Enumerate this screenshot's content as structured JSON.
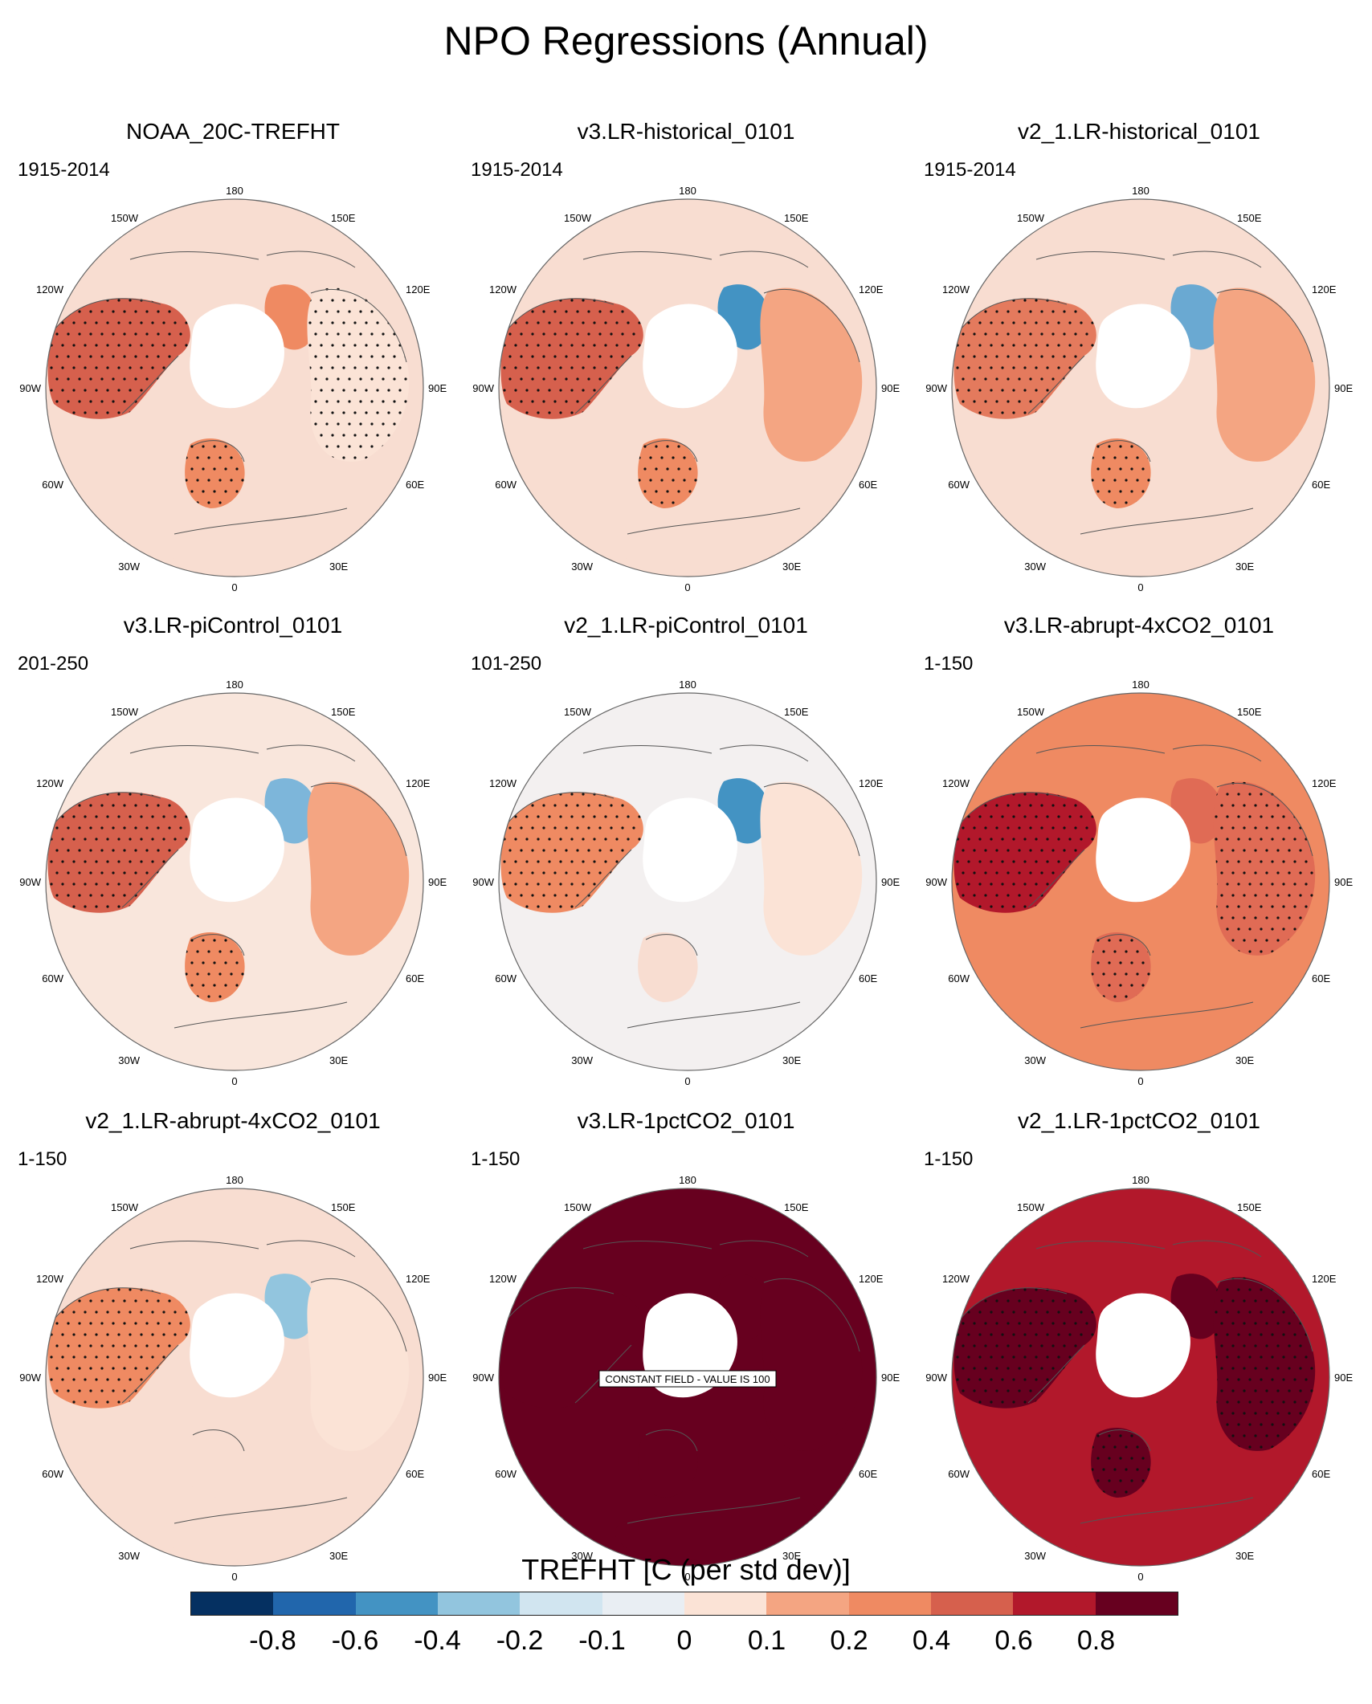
{
  "title": "NPO Regressions (Annual)",
  "colors": {
    "ocean_weak_pos": "#f8ddd1",
    "ocean_weak_neg": "#e3ecf3",
    "land_neutral": "#ffffff"
  },
  "longitude_labels": {
    "top": "180",
    "bottom": "0",
    "left": "90W",
    "right": "90E",
    "upper_left": "150W",
    "upper_right": "150E",
    "mid_upper_left": "120W",
    "mid_upper_right": "120E",
    "mid_lower_left": "60W",
    "mid_lower_right": "60E",
    "lower_left": "30W",
    "lower_right": "30E"
  },
  "panels": [
    {
      "title": "NOAA_20C-TREFHT",
      "period": "1915-2014",
      "ocean": "#f8ddd1",
      "na": "#d6604d",
      "eu": "#ef8a62",
      "sib": "#ef8a62",
      "asia": "#fbe3d6",
      "stip_na": true,
      "stip_sib": true,
      "stip_eu": true
    },
    {
      "title": "v3.LR-historical_0101",
      "period": "1915-2014",
      "ocean": "#f8ddd1",
      "na": "#d6604d",
      "eu": "#ef8a62",
      "sib": "#4393c3",
      "asia": "#f4a582",
      "stip_na": true,
      "stip_sib": false,
      "stip_eu": true
    },
    {
      "title": "v2_1.LR-historical_0101",
      "period": "1915-2014",
      "ocean": "#f8ddd1",
      "na": "#e47a5d",
      "eu": "#ef8a62",
      "sib": "#6aa9d2",
      "asia": "#f4a582",
      "stip_na": true,
      "stip_sib": false,
      "stip_eu": true
    },
    {
      "title": "v3.LR-piControl_0101",
      "period": "201-250",
      "ocean": "#f9e6dc",
      "na": "#d6604d",
      "eu": "#ef8a62",
      "sib": "#7db6da",
      "asia": "#f4a582",
      "stip_na": true,
      "stip_sib": false,
      "stip_eu": true
    },
    {
      "title": "v2_1.LR-piControl_0101",
      "period": "101-250",
      "ocean": "#f3f0f0",
      "na": "#ef8a62",
      "eu": "#f8ddd1",
      "sib": "#4393c3",
      "asia": "#fbe3d6",
      "stip_na": true,
      "stip_sib": false,
      "stip_eu": false
    },
    {
      "title": "v3.LR-abrupt-4xCO2_0101",
      "period": "1-150",
      "ocean": "#ef8a62",
      "na": "#b2182b",
      "eu": "#e06b55",
      "sib": "#e06b55",
      "asia": "#e06b55",
      "stip_na": true,
      "stip_sib": true,
      "stip_eu": true
    },
    {
      "title": "v2_1.LR-abrupt-4xCO2_0101",
      "period": "1-150",
      "ocean": "#f8ddd1",
      "na": "#ef8a62",
      "eu": "#f8ddd1",
      "sib": "#92c5de",
      "asia": "#fbe3d6",
      "stip_na": true,
      "stip_sib": false,
      "stip_eu": false
    },
    {
      "title": "v3.LR-1pctCO2_0101",
      "period": "1-150",
      "ocean": "#67001f",
      "na": "#67001f",
      "eu": "#67001f",
      "sib": "#67001f",
      "asia": "#67001f",
      "stip_na": false,
      "stip_sib": false,
      "stip_eu": false,
      "note": "CONSTANT FIELD - VALUE IS 100"
    },
    {
      "title": "v2_1.LR-1pctCO2_0101",
      "period": "1-150",
      "ocean": "#b2182b",
      "na": "#67001f",
      "eu": "#67001f",
      "sib": "#67001f",
      "asia": "#67001f",
      "stip_na": true,
      "stip_sib": true,
      "stip_eu": true
    }
  ],
  "colorbar": {
    "title": "TREFHT [C (per std dev)]",
    "colors": [
      "#053061",
      "#2166ac",
      "#4393c3",
      "#92c5de",
      "#d1e5f0",
      "#e9eef3",
      "#fbe3d6",
      "#f4a582",
      "#ef8a62",
      "#d6604d",
      "#b2182b",
      "#67001f"
    ],
    "ticks": [
      "-0.8",
      "-0.6",
      "-0.4",
      "-0.2",
      "-0.1",
      "0",
      "0.1",
      "0.2",
      "0.4",
      "0.6",
      "0.8"
    ]
  }
}
